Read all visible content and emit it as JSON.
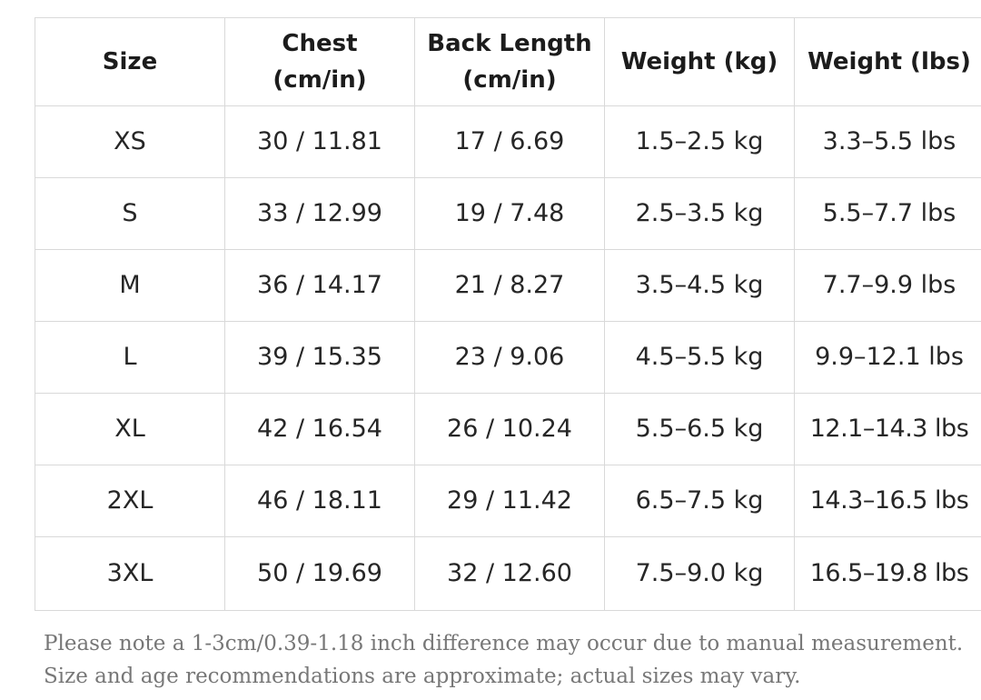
{
  "table": {
    "headers": [
      [
        "Chest",
        "(cm/in)"
      ],
      [
        "Back Length",
        "(cm/in)"
      ]
    ],
    "header_size": "Size",
    "header_weight_kg": "Weight (kg)",
    "header_weight_lbs": "Weight (lbs)",
    "rows": [
      [
        "XS",
        "30 / 11.81",
        "17 / 6.69",
        "1.5–2.5 kg",
        "3.3–5.5 lbs"
      ],
      [
        "S",
        "33 / 12.99",
        "19 / 7.48",
        "2.5–3.5 kg",
        "5.5–7.7 lbs"
      ],
      [
        "M",
        "36 / 14.17",
        "21 / 8.27",
        "3.5–4.5 kg",
        "7.7–9.9 lbs"
      ],
      [
        "L",
        "39 / 15.35",
        "23 / 9.06",
        "4.5–5.5 kg",
        "9.9–12.1 lbs"
      ],
      [
        "XL",
        "42 / 16.54",
        "26 / 10.24",
        "5.5–6.5 kg",
        "12.1–14.3 lbs"
      ],
      [
        "2XL",
        "46 / 18.11",
        "29 / 11.42",
        "6.5–7.5 kg",
        "14.3–16.5 lbs"
      ],
      [
        "3XL",
        "50 / 19.69",
        "32 / 12.60",
        "7.5–9.0 kg",
        "16.5–19.8 lbs"
      ]
    ]
  },
  "note": {
    "line1": "Please note a 1-3cm/0.39-1.18 inch difference may occur due to manual measurement.",
    "line2": "Size and age recommendations are approximate; actual sizes may vary."
  }
}
